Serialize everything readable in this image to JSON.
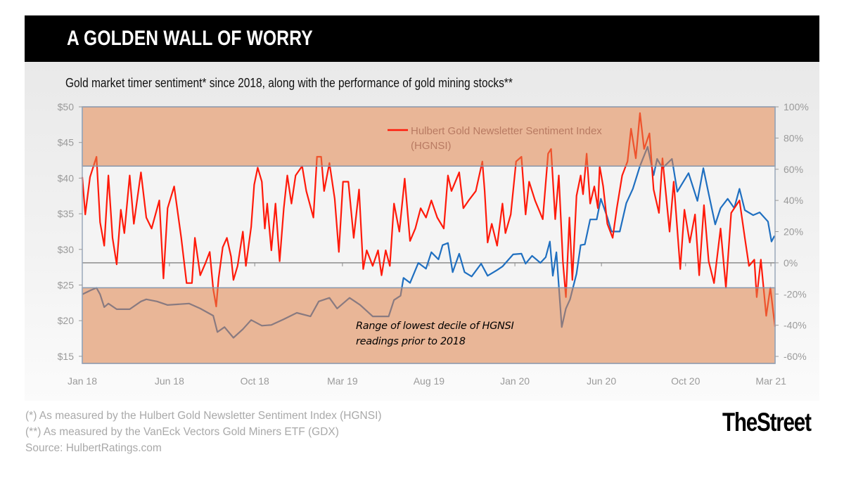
{
  "header": {
    "title": "A GOLDEN WALL OF WORRY"
  },
  "subtitle": "Gold market timer sentiment* since 2018, along with the performance of gold mining stocks**",
  "footnotes": [
    "(*) As measured by the Hulbert Gold Newsletter Sentiment Index (HGNSI)",
    "(**) As measured by the VanEck Vectors Gold Miners ETF (GDX)",
    "Source: HulbertRatings.com"
  ],
  "logo": "TheStreet",
  "colors": {
    "hgnsi": "#ff1a0a",
    "gdx": "#1f6fc0",
    "band": "#e0844a",
    "title_bar": "#000000"
  },
  "chart_data": {
    "type": "line",
    "title": "",
    "xlim": [
      "2018-01-01",
      "2021-03-15"
    ],
    "x_ticks": [
      {
        "label": "Jan 18",
        "date": "2018-01-01"
      },
      {
        "label": "Jun 18",
        "date": "2018-05-28"
      },
      {
        "label": "Oct 18",
        "date": "2018-10-19"
      },
      {
        "label": "Mar 19",
        "date": "2019-03-16"
      },
      {
        "label": "Aug 19",
        "date": "2019-08-09"
      },
      {
        "label": "Jan 20",
        "date": "2020-01-01"
      },
      {
        "label": "Jun 20",
        "date": "2020-05-26"
      },
      {
        "label": "Oct 20",
        "date": "2020-10-15"
      },
      {
        "label": "Mar 21",
        "date": "2021-03-08"
      }
    ],
    "y_left": {
      "ylim": [
        14,
        50
      ],
      "ticks": [
        15,
        20,
        25,
        30,
        35,
        40,
        45,
        50
      ],
      "tick_labels": [
        "$15",
        "$20",
        "$25",
        "$30",
        "$35",
        "$40",
        "$45",
        "$50"
      ]
    },
    "y_right": {
      "ylim": [
        -64.5,
        100
      ],
      "ticks": [
        -60,
        -40,
        -20,
        0,
        20,
        40,
        60,
        80,
        100
      ],
      "tick_labels": [
        "-60%",
        "-40%",
        "-20%",
        "0%",
        "20%",
        "40%",
        "60%",
        "80%",
        "100%"
      ]
    },
    "bands": [
      {
        "axis": "right",
        "from": 62,
        "to": 100
      },
      {
        "axis": "right",
        "from": -64.5,
        "to": -16
      }
    ],
    "annotation": [
      "Range of lowest decile of HGNSI",
      "readings prior to 2018"
    ],
    "legend": {
      "position": "top-center",
      "entries": [
        "Hulbert Gold Newsletter Sentiment Index",
        "(HGNSI)"
      ]
    },
    "series": [
      {
        "name": "Hulbert Gold Newsletter Sentiment Index (HGNSI)",
        "axis": "right",
        "color": "#ff1a0a",
        "points": [
          [
            "2018-01-01",
            55
          ],
          [
            "2018-01-06",
            31
          ],
          [
            "2018-01-14",
            55
          ],
          [
            "2018-01-25",
            68
          ],
          [
            "2018-01-31",
            26
          ],
          [
            "2018-02-07",
            11
          ],
          [
            "2018-02-14",
            56
          ],
          [
            "2018-02-21",
            16
          ],
          [
            "2018-02-28",
            -1
          ],
          [
            "2018-03-07",
            34
          ],
          [
            "2018-03-13",
            19
          ],
          [
            "2018-03-22",
            56
          ],
          [
            "2018-03-29",
            25
          ],
          [
            "2018-04-10",
            58
          ],
          [
            "2018-04-19",
            29
          ],
          [
            "2018-04-28",
            22
          ],
          [
            "2018-05-11",
            40
          ],
          [
            "2018-05-18",
            -10
          ],
          [
            "2018-05-25",
            35
          ],
          [
            "2018-06-05",
            49
          ],
          [
            "2018-06-17",
            16
          ],
          [
            "2018-06-26",
            -13
          ],
          [
            "2018-07-05",
            -13
          ],
          [
            "2018-07-10",
            16
          ],
          [
            "2018-07-19",
            -8
          ],
          [
            "2018-07-28",
            0
          ],
          [
            "2018-08-04",
            7
          ],
          [
            "2018-08-10",
            -17
          ],
          [
            "2018-08-15",
            -28
          ],
          [
            "2018-08-19",
            -10
          ],
          [
            "2018-08-26",
            10
          ],
          [
            "2018-09-02",
            16
          ],
          [
            "2018-09-09",
            4
          ],
          [
            "2018-09-13",
            -11
          ],
          [
            "2018-09-20",
            -2
          ],
          [
            "2018-09-29",
            20
          ],
          [
            "2018-10-04",
            -2
          ],
          [
            "2018-10-13",
            23
          ],
          [
            "2018-10-18",
            50
          ],
          [
            "2018-10-24",
            61
          ],
          [
            "2018-10-31",
            52
          ],
          [
            "2018-11-05",
            22
          ],
          [
            "2018-11-09",
            38
          ],
          [
            "2018-11-16",
            8
          ],
          [
            "2018-11-23",
            38
          ],
          [
            "2018-11-30",
            1
          ],
          [
            "2018-12-07",
            35
          ],
          [
            "2018-12-13",
            56
          ],
          [
            "2018-12-20",
            38
          ],
          [
            "2018-12-27",
            56
          ],
          [
            "2019-01-07",
            62
          ],
          [
            "2019-01-14",
            46
          ],
          [
            "2019-01-26",
            29
          ],
          [
            "2019-02-01",
            68
          ],
          [
            "2019-02-08",
            68
          ],
          [
            "2019-02-13",
            46
          ],
          [
            "2019-02-22",
            64
          ],
          [
            "2019-03-03",
            41
          ],
          [
            "2019-03-10",
            7
          ],
          [
            "2019-03-17",
            52
          ],
          [
            "2019-03-26",
            52
          ],
          [
            "2019-04-04",
            16
          ],
          [
            "2019-04-13",
            47
          ],
          [
            "2019-04-20",
            -4
          ],
          [
            "2019-04-26",
            8
          ],
          [
            "2019-05-06",
            -2
          ],
          [
            "2019-05-15",
            8
          ],
          [
            "2019-05-21",
            -8
          ],
          [
            "2019-05-28",
            8
          ],
          [
            "2019-06-04",
            -2
          ],
          [
            "2019-06-11",
            38
          ],
          [
            "2019-06-20",
            20
          ],
          [
            "2019-06-29",
            54
          ],
          [
            "2019-07-08",
            14
          ],
          [
            "2019-07-17",
            22
          ],
          [
            "2019-07-26",
            35
          ],
          [
            "2019-08-04",
            29
          ],
          [
            "2019-08-13",
            40
          ],
          [
            "2019-08-23",
            29
          ],
          [
            "2019-09-03",
            22
          ],
          [
            "2019-09-10",
            56
          ],
          [
            "2019-09-16",
            46
          ],
          [
            "2019-09-29",
            58
          ],
          [
            "2019-10-06",
            35
          ],
          [
            "2019-10-15",
            40
          ],
          [
            "2019-10-27",
            46
          ],
          [
            "2019-11-07",
            65
          ],
          [
            "2019-11-11",
            46
          ],
          [
            "2019-11-16",
            13
          ],
          [
            "2019-11-23",
            25
          ],
          [
            "2019-12-02",
            11
          ],
          [
            "2019-12-11",
            38
          ],
          [
            "2019-12-16",
            19
          ],
          [
            "2019-12-25",
            31
          ],
          [
            "2020-01-03",
            65
          ],
          [
            "2020-01-12",
            68
          ],
          [
            "2020-01-19",
            31
          ],
          [
            "2020-01-25",
            52
          ],
          [
            "2020-02-04",
            40
          ],
          [
            "2020-02-17",
            28
          ],
          [
            "2020-02-26",
            70
          ],
          [
            "2020-03-02",
            73
          ],
          [
            "2020-03-09",
            28
          ],
          [
            "2020-03-15",
            56
          ],
          [
            "2020-03-22",
            1
          ],
          [
            "2020-03-27",
            -22
          ],
          [
            "2020-04-02",
            29
          ],
          [
            "2020-04-07",
            -11
          ],
          [
            "2020-04-14",
            43
          ],
          [
            "2020-04-21",
            56
          ],
          [
            "2020-04-25",
            44
          ],
          [
            "2020-05-01",
            70
          ],
          [
            "2020-05-07",
            38
          ],
          [
            "2020-05-14",
            49
          ],
          [
            "2020-05-20",
            35
          ],
          [
            "2020-05-23",
            62
          ],
          [
            "2020-05-29",
            49
          ],
          [
            "2020-06-05",
            25
          ],
          [
            "2020-06-14",
            16
          ],
          [
            "2020-06-21",
            35
          ],
          [
            "2020-06-30",
            56
          ],
          [
            "2020-07-09",
            65
          ],
          [
            "2020-07-15",
            86
          ],
          [
            "2020-07-23",
            67
          ],
          [
            "2020-07-30",
            96
          ],
          [
            "2020-08-06",
            73
          ],
          [
            "2020-08-15",
            83
          ],
          [
            "2020-08-22",
            47
          ],
          [
            "2020-08-31",
            32
          ],
          [
            "2020-09-06",
            67
          ],
          [
            "2020-09-18",
            20
          ],
          [
            "2020-09-25",
            52
          ],
          [
            "2020-10-06",
            -4
          ],
          [
            "2020-10-13",
            34
          ],
          [
            "2020-10-22",
            13
          ],
          [
            "2020-10-31",
            31
          ],
          [
            "2020-11-07",
            -8
          ],
          [
            "2020-11-15",
            37
          ],
          [
            "2020-11-23",
            1
          ],
          [
            "2020-12-02",
            -13
          ],
          [
            "2020-12-13",
            22
          ],
          [
            "2020-12-22",
            -16
          ],
          [
            "2020-12-31",
            32
          ],
          [
            "2021-01-14",
            40
          ],
          [
            "2021-01-23",
            16
          ],
          [
            "2021-01-30",
            -2
          ],
          [
            "2021-02-08",
            2
          ],
          [
            "2021-02-12",
            -22
          ],
          [
            "2021-02-19",
            2
          ],
          [
            "2021-02-28",
            -34
          ],
          [
            "2021-03-07",
            -16
          ],
          [
            "2021-03-12",
            -32
          ],
          [
            "2021-03-15",
            -41
          ]
        ]
      },
      {
        "axis": "left",
        "color": "#1f6fc0",
        "points": [
          [
            "2018-01-01",
            23.7
          ],
          [
            "2018-01-16",
            24.3
          ],
          [
            "2018-01-25",
            24.6
          ],
          [
            "2018-01-31",
            23.7
          ],
          [
            "2018-02-07",
            21.9
          ],
          [
            "2018-02-14",
            22.4
          ],
          [
            "2018-02-28",
            21.6
          ],
          [
            "2018-03-22",
            21.6
          ],
          [
            "2018-04-10",
            22.7
          ],
          [
            "2018-04-19",
            23.0
          ],
          [
            "2018-05-07",
            22.7
          ],
          [
            "2018-05-25",
            22.2
          ],
          [
            "2018-06-30",
            22.4
          ],
          [
            "2018-07-19",
            21.7
          ],
          [
            "2018-08-10",
            20.7
          ],
          [
            "2018-08-17",
            18.4
          ],
          [
            "2018-08-29",
            19.1
          ],
          [
            "2018-09-13",
            17.6
          ],
          [
            "2018-09-29",
            18.8
          ],
          [
            "2018-10-13",
            20.1
          ],
          [
            "2018-10-31",
            19.3
          ],
          [
            "2018-11-16",
            19.4
          ],
          [
            "2018-12-07",
            20.2
          ],
          [
            "2018-12-29",
            21.1
          ],
          [
            "2019-01-21",
            20.6
          ],
          [
            "2019-02-04",
            22.7
          ],
          [
            "2019-02-22",
            23.2
          ],
          [
            "2019-03-07",
            21.7
          ],
          [
            "2019-03-28",
            23.2
          ],
          [
            "2019-04-15",
            22.2
          ],
          [
            "2019-05-06",
            20.6
          ],
          [
            "2019-06-02",
            20.6
          ],
          [
            "2019-06-11",
            22.9
          ],
          [
            "2019-06-22",
            23.5
          ],
          [
            "2019-06-27",
            26.0
          ],
          [
            "2019-07-08",
            25.3
          ],
          [
            "2019-07-22",
            28.1
          ],
          [
            "2019-08-04",
            27.3
          ],
          [
            "2019-08-13",
            29.6
          ],
          [
            "2019-08-25",
            28.6
          ],
          [
            "2019-09-01",
            30.6
          ],
          [
            "2019-09-10",
            30.9
          ],
          [
            "2019-09-18",
            26.8
          ],
          [
            "2019-09-29",
            29.4
          ],
          [
            "2019-10-08",
            26.8
          ],
          [
            "2019-10-20",
            26.2
          ],
          [
            "2019-11-05",
            28.0
          ],
          [
            "2019-11-16",
            26.3
          ],
          [
            "2019-12-02",
            27.1
          ],
          [
            "2019-12-11",
            27.6
          ],
          [
            "2019-12-29",
            29.3
          ],
          [
            "2020-01-12",
            29.4
          ],
          [
            "2020-01-19",
            28.0
          ],
          [
            "2020-01-30",
            29.1
          ],
          [
            "2020-02-13",
            28.1
          ],
          [
            "2020-02-22",
            28.9
          ],
          [
            "2020-02-29",
            31.1
          ],
          [
            "2020-03-05",
            26.3
          ],
          [
            "2020-03-11",
            29.6
          ],
          [
            "2020-03-20",
            19.1
          ],
          [
            "2020-03-27",
            21.7
          ],
          [
            "2020-04-03",
            23.0
          ],
          [
            "2020-04-14",
            26.6
          ],
          [
            "2020-04-21",
            30.6
          ],
          [
            "2020-04-28",
            30.7
          ],
          [
            "2020-05-07",
            34.2
          ],
          [
            "2020-05-18",
            34.2
          ],
          [
            "2020-05-25",
            37.1
          ],
          [
            "2020-06-05",
            34.5
          ],
          [
            "2020-06-12",
            32.5
          ],
          [
            "2020-06-26",
            32.5
          ],
          [
            "2020-07-07",
            36.5
          ],
          [
            "2020-07-18",
            38.5
          ],
          [
            "2020-07-30",
            41.7
          ],
          [
            "2020-08-12",
            44.4
          ],
          [
            "2020-08-22",
            40.4
          ],
          [
            "2020-08-28",
            42.7
          ],
          [
            "2020-09-06",
            41.4
          ],
          [
            "2020-09-22",
            42.7
          ],
          [
            "2020-10-01",
            38.1
          ],
          [
            "2020-10-20",
            40.7
          ],
          [
            "2020-11-04",
            36.8
          ],
          [
            "2020-11-14",
            41.4
          ],
          [
            "2020-11-23",
            37.8
          ],
          [
            "2020-12-04",
            33.5
          ],
          [
            "2020-12-13",
            35.8
          ],
          [
            "2020-12-25",
            37.1
          ],
          [
            "2021-01-05",
            35.8
          ],
          [
            "2021-01-14",
            38.5
          ],
          [
            "2021-01-23",
            35.5
          ],
          [
            "2021-02-06",
            34.8
          ],
          [
            "2021-02-17",
            35.2
          ],
          [
            "2021-03-03",
            33.9
          ],
          [
            "2021-03-09",
            31.1
          ],
          [
            "2021-03-14",
            31.9
          ]
        ]
      }
    ]
  }
}
